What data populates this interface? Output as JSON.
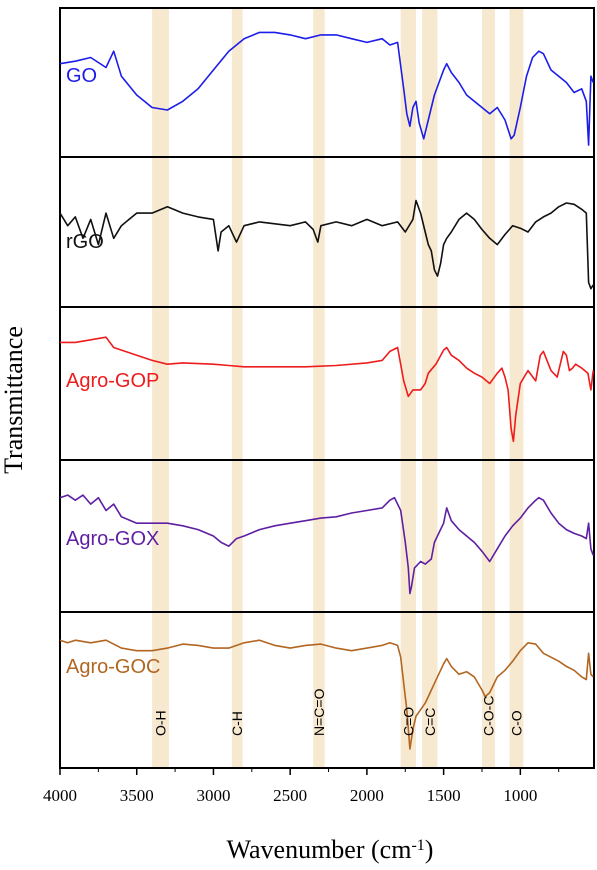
{
  "chart_data": {
    "type": "line",
    "title": "",
    "xlabel": "Wavenumber (cm",
    "xlabel_sup": "-1",
    "xlabel_close": ")",
    "ylabel": "Transmittance",
    "x_reversed": true,
    "xlim": [
      4000,
      520
    ],
    "x_ticks": [
      4000,
      3500,
      3000,
      2500,
      2000,
      1500,
      1000
    ],
    "band_color": "#f7e8d0",
    "bands": [
      {
        "label": "O-H",
        "from": 3400,
        "to": 3290
      },
      {
        "label": "C-H",
        "from": 2880,
        "to": 2810
      },
      {
        "label": "N=C=O",
        "from": 2350,
        "to": 2275
      },
      {
        "label": "C=O",
        "from": 1780,
        "to": 1680
      },
      {
        "label": "C=C",
        "from": 1640,
        "to": 1540
      },
      {
        "label": "C-O-C",
        "from": 1250,
        "to": 1165
      },
      {
        "label": "C-O",
        "from": 1070,
        "to": 980
      }
    ],
    "series": [
      {
        "name": "GO",
        "color": "#1d1dea",
        "points": [
          [
            4000,
            35
          ],
          [
            3900,
            33
          ],
          [
            3800,
            30
          ],
          [
            3700,
            38
          ],
          [
            3650,
            25
          ],
          [
            3600,
            45
          ],
          [
            3500,
            60
          ],
          [
            3400,
            70
          ],
          [
            3300,
            72
          ],
          [
            3200,
            65
          ],
          [
            3100,
            55
          ],
          [
            3000,
            40
          ],
          [
            2900,
            25
          ],
          [
            2800,
            15
          ],
          [
            2700,
            10
          ],
          [
            2600,
            10
          ],
          [
            2500,
            12
          ],
          [
            2400,
            15
          ],
          [
            2300,
            12
          ],
          [
            2200,
            12
          ],
          [
            2100,
            15
          ],
          [
            2000,
            18
          ],
          [
            1900,
            15
          ],
          [
            1850,
            20
          ],
          [
            1800,
            18
          ],
          [
            1760,
            55
          ],
          [
            1740,
            75
          ],
          [
            1720,
            85
          ],
          [
            1700,
            70
          ],
          [
            1680,
            65
          ],
          [
            1660,
            82
          ],
          [
            1630,
            95
          ],
          [
            1600,
            80
          ],
          [
            1560,
            60
          ],
          [
            1500,
            40
          ],
          [
            1480,
            35
          ],
          [
            1450,
            42
          ],
          [
            1400,
            50
          ],
          [
            1350,
            60
          ],
          [
            1300,
            65
          ],
          [
            1250,
            70
          ],
          [
            1200,
            75
          ],
          [
            1150,
            70
          ],
          [
            1100,
            80
          ],
          [
            1060,
            95
          ],
          [
            1040,
            92
          ],
          [
            1000,
            70
          ],
          [
            960,
            45
          ],
          [
            920,
            30
          ],
          [
            880,
            25
          ],
          [
            850,
            27
          ],
          [
            800,
            40
          ],
          [
            750,
            45
          ],
          [
            700,
            50
          ],
          [
            650,
            58
          ],
          [
            600,
            55
          ],
          [
            570,
            65
          ],
          [
            555,
            100
          ],
          [
            540,
            45
          ],
          [
            525,
            50
          ]
        ]
      },
      {
        "name": "rGO",
        "color": "#111111",
        "points": [
          [
            4000,
            35
          ],
          [
            3950,
            45
          ],
          [
            3900,
            38
          ],
          [
            3850,
            55
          ],
          [
            3800,
            40
          ],
          [
            3750,
            60
          ],
          [
            3700,
            35
          ],
          [
            3650,
            55
          ],
          [
            3600,
            45
          ],
          [
            3500,
            35
          ],
          [
            3400,
            35
          ],
          [
            3300,
            30
          ],
          [
            3200,
            35
          ],
          [
            3100,
            38
          ],
          [
            3000,
            40
          ],
          [
            2970,
            65
          ],
          [
            2950,
            50
          ],
          [
            2900,
            45
          ],
          [
            2850,
            58
          ],
          [
            2800,
            45
          ],
          [
            2700,
            42
          ],
          [
            2500,
            45
          ],
          [
            2400,
            42
          ],
          [
            2350,
            48
          ],
          [
            2320,
            58
          ],
          [
            2300,
            45
          ],
          [
            2200,
            42
          ],
          [
            2100,
            45
          ],
          [
            2000,
            40
          ],
          [
            1900,
            45
          ],
          [
            1800,
            42
          ],
          [
            1750,
            50
          ],
          [
            1700,
            40
          ],
          [
            1680,
            25
          ],
          [
            1650,
            35
          ],
          [
            1620,
            50
          ],
          [
            1600,
            60
          ],
          [
            1580,
            65
          ],
          [
            1560,
            80
          ],
          [
            1540,
            85
          ],
          [
            1520,
            75
          ],
          [
            1500,
            60
          ],
          [
            1480,
            55
          ],
          [
            1450,
            50
          ],
          [
            1400,
            40
          ],
          [
            1350,
            35
          ],
          [
            1300,
            40
          ],
          [
            1250,
            48
          ],
          [
            1200,
            55
          ],
          [
            1150,
            60
          ],
          [
            1100,
            52
          ],
          [
            1050,
            45
          ],
          [
            1000,
            47
          ],
          [
            950,
            50
          ],
          [
            900,
            42
          ],
          [
            850,
            38
          ],
          [
            800,
            35
          ],
          [
            750,
            30
          ],
          [
            700,
            27
          ],
          [
            650,
            28
          ],
          [
            600,
            32
          ],
          [
            570,
            35
          ],
          [
            555,
            90
          ],
          [
            540,
            95
          ],
          [
            525,
            92
          ]
        ]
      },
      {
        "name": "Agro-GOP",
        "color": "#ee1c1c",
        "points": [
          [
            4000,
            18
          ],
          [
            3900,
            18
          ],
          [
            3800,
            16
          ],
          [
            3700,
            14
          ],
          [
            3650,
            22
          ],
          [
            3500,
            28
          ],
          [
            3400,
            32
          ],
          [
            3300,
            35
          ],
          [
            3200,
            34
          ],
          [
            3000,
            35
          ],
          [
            2900,
            36
          ],
          [
            2800,
            37
          ],
          [
            2600,
            37
          ],
          [
            2400,
            37
          ],
          [
            2200,
            36
          ],
          [
            2000,
            34
          ],
          [
            1900,
            32
          ],
          [
            1850,
            25
          ],
          [
            1800,
            22
          ],
          [
            1760,
            48
          ],
          [
            1730,
            60
          ],
          [
            1700,
            55
          ],
          [
            1650,
            55
          ],
          [
            1620,
            50
          ],
          [
            1600,
            42
          ],
          [
            1550,
            35
          ],
          [
            1500,
            24
          ],
          [
            1480,
            22
          ],
          [
            1450,
            28
          ],
          [
            1400,
            32
          ],
          [
            1350,
            38
          ],
          [
            1300,
            42
          ],
          [
            1250,
            45
          ],
          [
            1200,
            50
          ],
          [
            1150,
            42
          ],
          [
            1120,
            38
          ],
          [
            1100,
            45
          ],
          [
            1080,
            55
          ],
          [
            1060,
            85
          ],
          [
            1045,
            95
          ],
          [
            1030,
            75
          ],
          [
            1000,
            50
          ],
          [
            950,
            40
          ],
          [
            900,
            48
          ],
          [
            870,
            28
          ],
          [
            850,
            25
          ],
          [
            800,
            40
          ],
          [
            760,
            45
          ],
          [
            720,
            25
          ],
          [
            700,
            28
          ],
          [
            680,
            40
          ],
          [
            660,
            38
          ],
          [
            640,
            35
          ],
          [
            600,
            38
          ],
          [
            560,
            42
          ],
          [
            540,
            55
          ],
          [
            525,
            40
          ]
        ]
      },
      {
        "name": "Agro-GOX",
        "color": "#5e1fa3",
        "points": [
          [
            4000,
            20
          ],
          [
            3950,
            18
          ],
          [
            3900,
            22
          ],
          [
            3850,
            18
          ],
          [
            3800,
            25
          ],
          [
            3750,
            20
          ],
          [
            3700,
            30
          ],
          [
            3650,
            25
          ],
          [
            3600,
            35
          ],
          [
            3500,
            40
          ],
          [
            3400,
            40
          ],
          [
            3300,
            40
          ],
          [
            3200,
            42
          ],
          [
            3100,
            45
          ],
          [
            3000,
            50
          ],
          [
            2950,
            55
          ],
          [
            2900,
            58
          ],
          [
            2850,
            52
          ],
          [
            2800,
            50
          ],
          [
            2700,
            45
          ],
          [
            2600,
            42
          ],
          [
            2500,
            40
          ],
          [
            2400,
            38
          ],
          [
            2300,
            36
          ],
          [
            2200,
            35
          ],
          [
            2100,
            32
          ],
          [
            2000,
            30
          ],
          [
            1900,
            28
          ],
          [
            1850,
            22
          ],
          [
            1820,
            20
          ],
          [
            1780,
            30
          ],
          [
            1750,
            55
          ],
          [
            1730,
            75
          ],
          [
            1720,
            95
          ],
          [
            1710,
            90
          ],
          [
            1690,
            75
          ],
          [
            1650,
            70
          ],
          [
            1620,
            72
          ],
          [
            1600,
            70
          ],
          [
            1580,
            68
          ],
          [
            1560,
            55
          ],
          [
            1500,
            40
          ],
          [
            1480,
            28
          ],
          [
            1450,
            38
          ],
          [
            1400,
            45
          ],
          [
            1350,
            50
          ],
          [
            1300,
            55
          ],
          [
            1250,
            62
          ],
          [
            1200,
            70
          ],
          [
            1150,
            60
          ],
          [
            1100,
            50
          ],
          [
            1050,
            42
          ],
          [
            1000,
            36
          ],
          [
            950,
            28
          ],
          [
            900,
            22
          ],
          [
            880,
            20
          ],
          [
            850,
            22
          ],
          [
            800,
            32
          ],
          [
            750,
            40
          ],
          [
            700,
            45
          ],
          [
            650,
            48
          ],
          [
            600,
            50
          ],
          [
            570,
            52
          ],
          [
            555,
            40
          ],
          [
            540,
            60
          ],
          [
            525,
            65
          ]
        ]
      },
      {
        "name": "Agro-GOC",
        "color": "#b26622",
        "points": [
          [
            4000,
            12
          ],
          [
            3950,
            14
          ],
          [
            3900,
            12
          ],
          [
            3800,
            14
          ],
          [
            3700,
            12
          ],
          [
            3600,
            18
          ],
          [
            3500,
            20
          ],
          [
            3400,
            20
          ],
          [
            3300,
            18
          ],
          [
            3200,
            15
          ],
          [
            3100,
            16
          ],
          [
            3000,
            18
          ],
          [
            2900,
            18
          ],
          [
            2800,
            14
          ],
          [
            2700,
            12
          ],
          [
            2600,
            16
          ],
          [
            2500,
            18
          ],
          [
            2400,
            16
          ],
          [
            2300,
            15
          ],
          [
            2200,
            18
          ],
          [
            2100,
            20
          ],
          [
            2000,
            18
          ],
          [
            1900,
            16
          ],
          [
            1850,
            14
          ],
          [
            1800,
            16
          ],
          [
            1780,
            25
          ],
          [
            1760,
            45
          ],
          [
            1740,
            65
          ],
          [
            1720,
            95
          ],
          [
            1700,
            80
          ],
          [
            1680,
            70
          ],
          [
            1650,
            65
          ],
          [
            1620,
            60
          ],
          [
            1600,
            55
          ],
          [
            1560,
            45
          ],
          [
            1500,
            30
          ],
          [
            1480,
            26
          ],
          [
            1450,
            32
          ],
          [
            1400,
            38
          ],
          [
            1350,
            36
          ],
          [
            1300,
            40
          ],
          [
            1250,
            50
          ],
          [
            1230,
            55
          ],
          [
            1200,
            52
          ],
          [
            1150,
            40
          ],
          [
            1100,
            35
          ],
          [
            1050,
            28
          ],
          [
            1000,
            20
          ],
          [
            950,
            14
          ],
          [
            900,
            15
          ],
          [
            850,
            22
          ],
          [
            800,
            25
          ],
          [
            750,
            28
          ],
          [
            700,
            32
          ],
          [
            650,
            35
          ],
          [
            600,
            40
          ],
          [
            570,
            42
          ],
          [
            555,
            22
          ],
          [
            540,
            38
          ],
          [
            525,
            40
          ]
        ]
      }
    ]
  }
}
